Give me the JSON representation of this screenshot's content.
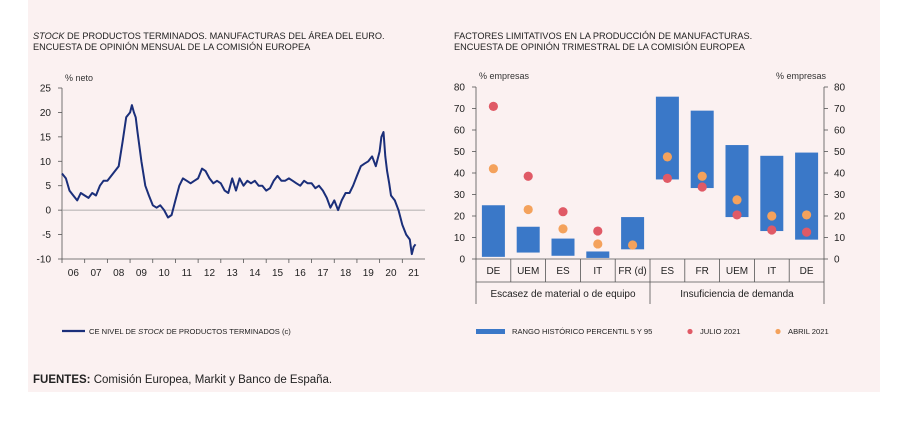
{
  "left_title": {
    "italic": "STOCK",
    "line1_rest": " DE PRODUCTOS TERMINADOS. MANUFACTURAS DEL ÁREA DEL EURO.",
    "line2": "ENCUESTA DE OPINIÓN MENSUAL DE LA COMISIÓN EUROPEA"
  },
  "right_title": {
    "line1": "FACTORES LIMITATIVOS EN LA PRODUCCIÓN DE MANUFACTURAS.",
    "line2": "ENCUESTA DE OPINIÓN TRIMESTRAL DE LA COMISIÓN EUROPEA"
  },
  "source": {
    "label": "FUENTES:",
    "text": " Comisión Europea, Markit y Banco de España."
  },
  "colors": {
    "line": "#1b2f7a",
    "bar": "#3a78c8",
    "julio": "#e05a66",
    "abril": "#f4a25c",
    "background": "#fbf1f1"
  },
  "chart_data": [
    {
      "type": "line",
      "ylabel": "% neto",
      "ylim": [
        -10,
        25
      ],
      "yticks": [
        25,
        20,
        15,
        10,
        5,
        0,
        -5,
        -10
      ],
      "xticks": [
        "06",
        "07",
        "08",
        "09",
        "10",
        "11",
        "12",
        "13",
        "14",
        "15",
        "16",
        "17",
        "18",
        "19",
        "20",
        "21"
      ],
      "grid": false,
      "legend": {
        "position": "bottom",
        "pre": "CE NIVEL DE ",
        "italic": "STOCK",
        "post": " DE PRODUCTOS TERMINADOS (c)"
      },
      "series": [
        {
          "name": "CE NIVEL DE STOCK DE PRODUCTOS TERMINADOS (c)",
          "x": [
            2006.0,
            2006.17,
            2006.33,
            2006.5,
            2006.67,
            2006.83,
            2007.0,
            2007.17,
            2007.33,
            2007.5,
            2007.67,
            2007.83,
            2008.0,
            2008.17,
            2008.33,
            2008.5,
            2008.67,
            2008.83,
            2009.0,
            2009.08,
            2009.17,
            2009.25,
            2009.33,
            2009.5,
            2009.67,
            2009.83,
            2010.0,
            2010.17,
            2010.33,
            2010.5,
            2010.67,
            2010.83,
            2011.0,
            2011.17,
            2011.33,
            2011.5,
            2011.67,
            2011.83,
            2012.0,
            2012.17,
            2012.33,
            2012.5,
            2012.67,
            2012.83,
            2013.0,
            2013.17,
            2013.33,
            2013.5,
            2013.67,
            2013.83,
            2014.0,
            2014.17,
            2014.33,
            2014.5,
            2014.67,
            2014.83,
            2015.0,
            2015.17,
            2015.33,
            2015.5,
            2015.67,
            2015.83,
            2016.0,
            2016.17,
            2016.33,
            2016.5,
            2016.67,
            2016.83,
            2017.0,
            2017.17,
            2017.33,
            2017.5,
            2017.67,
            2017.83,
            2018.0,
            2018.17,
            2018.33,
            2018.5,
            2018.67,
            2018.83,
            2019.0,
            2019.17,
            2019.33,
            2019.5,
            2019.67,
            2019.83,
            2020.0,
            2020.08,
            2020.17,
            2020.25,
            2020.33,
            2020.42,
            2020.5,
            2020.67,
            2020.83,
            2021.0,
            2021.17,
            2021.33,
            2021.42,
            2021.5,
            2021.58
          ],
          "values": [
            7.5,
            6.5,
            4,
            3,
            2,
            3.5,
            3,
            2.5,
            3.5,
            3,
            5,
            6,
            6,
            7,
            8,
            9,
            14,
            19,
            20,
            21.5,
            20,
            19,
            16,
            10,
            5,
            3,
            1,
            0.5,
            1,
            0,
            -1.5,
            -1,
            2,
            5,
            6.5,
            6,
            5.5,
            6,
            6.5,
            8.5,
            8,
            6.5,
            5.5,
            6,
            5.5,
            4,
            3.5,
            6.5,
            4,
            6.5,
            5,
            6,
            5.5,
            6,
            5,
            5,
            4,
            4.5,
            6,
            7,
            6,
            6,
            6.5,
            6,
            5.5,
            5,
            6,
            5.5,
            5.5,
            4.5,
            5,
            4,
            2.5,
            0.5,
            2,
            0,
            2,
            3.5,
            3.5,
            5,
            7,
            9,
            9.5,
            10,
            11,
            9,
            12,
            15,
            16,
            11,
            8,
            5.5,
            3,
            2,
            0,
            -3,
            -5,
            -6,
            -9,
            -7.5,
            -7
          ]
        }
      ]
    },
    {
      "type": "bar",
      "ylabel_left": "% empresas",
      "ylabel_right": "% empresas",
      "ylim": [
        0,
        80
      ],
      "yticks": [
        80,
        70,
        60,
        50,
        40,
        30,
        20,
        10,
        0
      ],
      "grid": false,
      "categories": [
        "DE",
        "UEM",
        "ES",
        "IT",
        "FR (d)",
        "ES",
        "FR",
        "UEM",
        "IT",
        "DE"
      ],
      "groups": [
        {
          "label": "Escasez de material o de equipo",
          "count": 5
        },
        {
          "label": "Insuficiencia de demanda",
          "count": 5
        }
      ],
      "legend": {
        "position": "bottom",
        "items": [
          "RANGO HISTÓRICO PERCENTIL 5 Y 95",
          "JULIO 2021",
          "ABRIL 2021"
        ]
      },
      "series": [
        {
          "name": "RANGO HISTÓRICO PERCENTIL 5 Y 95",
          "kind": "range",
          "low": [
            1,
            3,
            1.5,
            0.5,
            4.5,
            37,
            33,
            19.5,
            13,
            9
          ],
          "high": [
            25,
            15,
            9.5,
            3.5,
            19.5,
            75.5,
            69,
            53,
            48,
            49.5
          ]
        },
        {
          "name": "JULIO 2021",
          "kind": "point",
          "values": [
            71,
            38.5,
            22,
            13,
            null,
            37.5,
            33.5,
            20.5,
            13.5,
            12.5
          ]
        },
        {
          "name": "ABRIL 2021",
          "kind": "point",
          "values": [
            42,
            23,
            14,
            7,
            6.5,
            47.5,
            38.5,
            27.5,
            20,
            20.5
          ]
        }
      ]
    }
  ]
}
